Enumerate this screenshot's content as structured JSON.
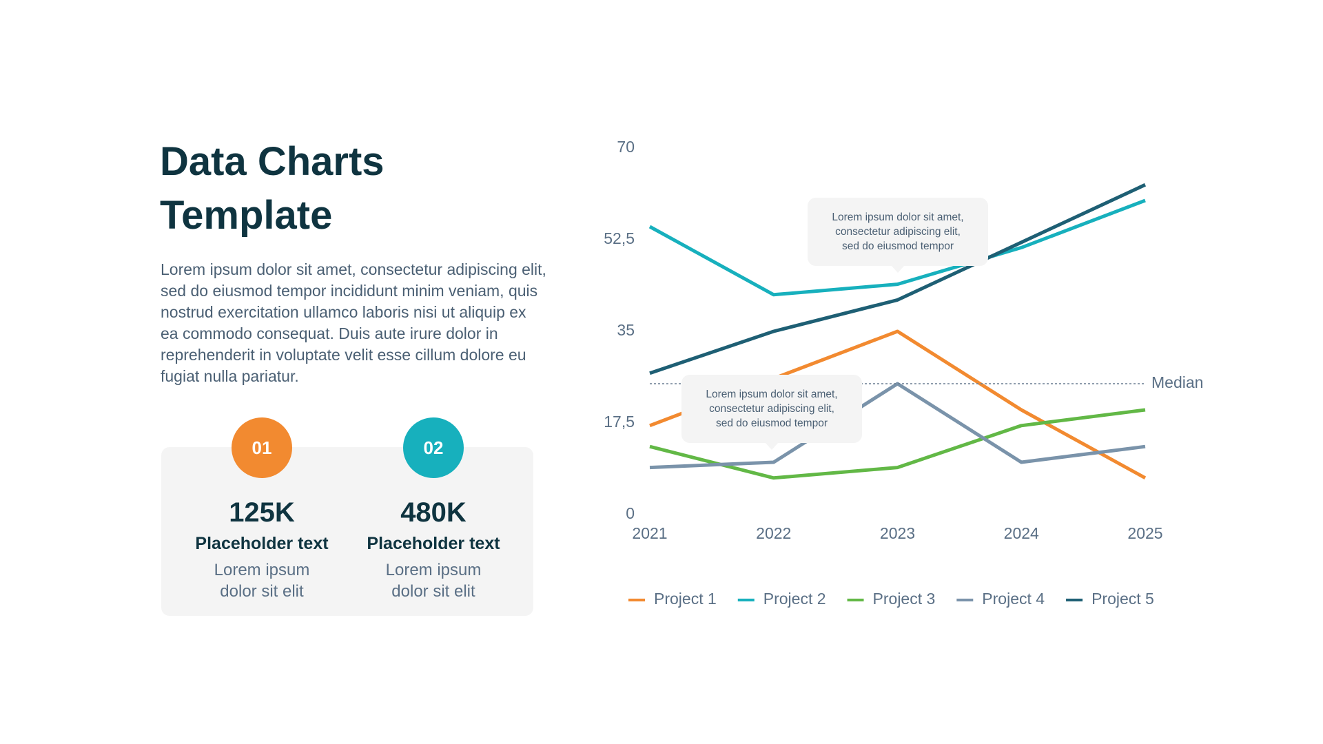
{
  "header": {
    "title_lines": [
      "Data Charts",
      "Template"
    ],
    "paragraph": "Lorem ipsum dolor sit amet, consectetur adipiscing elit, sed do eiusmod tempor incididunt minim veniam, quis nostrud exercitation ullamco laboris nisi ut aliquip ex ea commodo consequat. Duis aute irure dolor in reprehenderit in voluptate velit esse cillum dolore eu fugiat nulla pariatur."
  },
  "stats": [
    {
      "badge": "01",
      "color": "#f28a30",
      "value": "125K",
      "label": "Placeholder text",
      "description": "Lorem ipsum dolor sit elit"
    },
    {
      "badge": "02",
      "color": "#17b0bd",
      "value": "480K",
      "label": "Placeholder text",
      "description": "Lorem ipsum dolor sit elit"
    }
  ],
  "chart_data": {
    "type": "line",
    "categories": [
      "2021",
      "2022",
      "2023",
      "2024",
      "2025"
    ],
    "series": [
      {
        "name": "Project 1",
        "color": "#f28a30",
        "values": [
          17,
          26,
          35,
          20,
          7
        ]
      },
      {
        "name": "Project 2",
        "color": "#17b0bd",
        "values": [
          55,
          42,
          44,
          51,
          60
        ]
      },
      {
        "name": "Project 3",
        "color": "#62b846",
        "values": [
          13,
          7,
          9,
          17,
          20
        ]
      },
      {
        "name": "Project 4",
        "color": "#7a93aa",
        "values": [
          9,
          10,
          25,
          10,
          13
        ]
      },
      {
        "name": "Project 5",
        "color": "#1e5f74",
        "values": [
          27,
          35,
          41,
          52,
          63
        ]
      }
    ],
    "ylim": [
      0,
      70
    ],
    "yticks": [
      0,
      {
        "value": 17.5,
        "label": "17,5"
      },
      35,
      {
        "value": 52.5,
        "label": "52,5"
      },
      70
    ],
    "grid": false,
    "reference_line": {
      "value": 25,
      "label": "Median"
    },
    "annotations": [
      {
        "lines": [
          "Lorem ipsum dolor sit amet,",
          "consectetur adipiscing elit,",
          "sed do eiusmod tempor"
        ]
      },
      {
        "lines": [
          "Lorem ipsum dolor sit amet,",
          "consectetur adipiscing elit,",
          "sed do eiusmod tempor"
        ]
      }
    ],
    "legend": "bottom"
  }
}
